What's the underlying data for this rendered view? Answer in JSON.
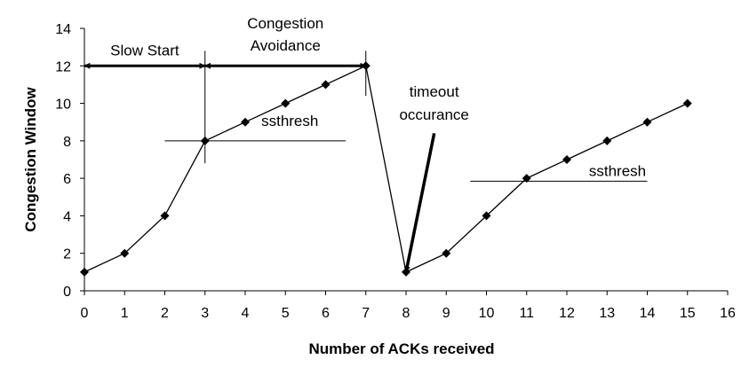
{
  "chart_data": {
    "type": "line",
    "title": "",
    "xlabel": "Number of ACKs received",
    "ylabel": "Congestion Window",
    "xlim": [
      0,
      16
    ],
    "ylim": [
      0,
      14
    ],
    "xticks": [
      "0",
      "1",
      "2",
      "3",
      "4",
      "5",
      "6",
      "7",
      "8",
      "9",
      "10",
      "11",
      "12",
      "13",
      "14",
      "15",
      "16"
    ],
    "yticks": [
      "0",
      "2",
      "4",
      "6",
      "8",
      "10",
      "12",
      "14"
    ],
    "grid": false,
    "legend": "none",
    "line_color": "#000000",
    "marker": "diamond",
    "series": [
      {
        "x": [
          0,
          1,
          2,
          3,
          4,
          5,
          6,
          7,
          8,
          9,
          10,
          11,
          12,
          13,
          14,
          15
        ],
        "y": [
          1,
          2,
          4,
          8,
          9,
          10,
          11,
          12,
          1,
          2,
          4,
          6,
          7,
          8,
          9,
          10
        ]
      }
    ],
    "annotations": {
      "slow_start": {
        "text": "Slow Start",
        "x_range": [
          0,
          3
        ],
        "y": 12
      },
      "congestion_avoidance": {
        "line1": "Congestion",
        "line2": "Avoidance",
        "x_range": [
          3,
          7
        ],
        "y": 12
      },
      "ssthresh_1": {
        "text": "ssthresh",
        "x_range": [
          2,
          6.5
        ],
        "y": 8
      },
      "ssthresh_2": {
        "text": "ssthresh",
        "x_range": [
          9.6,
          14
        ],
        "y": 5.85
      },
      "timeout": {
        "line1": "timeout",
        "line2": "occurance",
        "arrow_to": [
          8,
          1
        ]
      }
    }
  }
}
